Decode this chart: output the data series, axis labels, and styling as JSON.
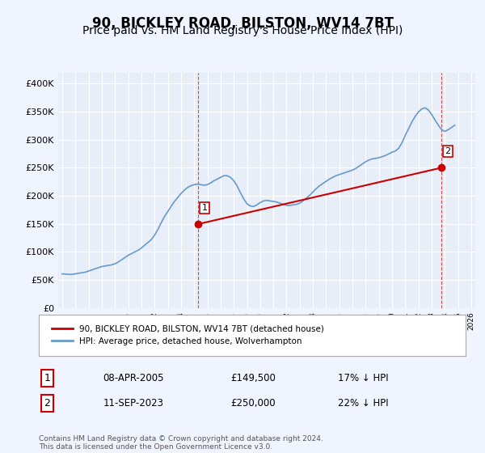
{
  "title": "90, BICKLEY ROAD, BILSTON, WV14 7BT",
  "subtitle": "Price paid vs. HM Land Registry's House Price Index (HPI)",
  "title_fontsize": 12,
  "subtitle_fontsize": 10,
  "background_color": "#f0f4ff",
  "plot_bg_color": "#e8eef8",
  "grid_color": "#ffffff",
  "line1_color": "#cc0000",
  "line2_color": "#6699cc",
  "marker1_color": "#cc0000",
  "marker2_color": "#cc0000",
  "dashed_line_color": "#cc0000",
  "xlabel": "",
  "ylabel": "",
  "ylim": [
    0,
    420000
  ],
  "ytick_labels": [
    "£0",
    "£50K",
    "£100K",
    "£150K",
    "£200K",
    "£250K",
    "£300K",
    "£350K",
    "£400K"
  ],
  "ytick_values": [
    0,
    50000,
    100000,
    150000,
    200000,
    250000,
    300000,
    350000,
    400000
  ],
  "xstart_year": 1995,
  "xend_year": 2026,
  "sale1_year": 2005.27,
  "sale1_price": 149500,
  "sale1_label": "1",
  "sale2_year": 2023.7,
  "sale2_price": 250000,
  "sale2_label": "2",
  "legend_line1": "90, BICKLEY ROAD, BILSTON, WV14 7BT (detached house)",
  "legend_line2": "HPI: Average price, detached house, Wolverhampton",
  "annotation1_date": "08-APR-2005",
  "annotation1_price": "£149,500",
  "annotation1_hpi": "17% ↓ HPI",
  "annotation2_date": "11-SEP-2023",
  "annotation2_price": "£250,000",
  "annotation2_hpi": "22% ↓ HPI",
  "footer": "Contains HM Land Registry data © Crown copyright and database right 2024.\nThis data is licensed under the Open Government Licence v3.0.",
  "hpi_data": {
    "years": [
      1995.0,
      1995.25,
      1995.5,
      1995.75,
      1996.0,
      1996.25,
      1996.5,
      1996.75,
      1997.0,
      1997.25,
      1997.5,
      1997.75,
      1998.0,
      1998.25,
      1998.5,
      1998.75,
      1999.0,
      1999.25,
      1999.5,
      1999.75,
      2000.0,
      2000.25,
      2000.5,
      2000.75,
      2001.0,
      2001.25,
      2001.5,
      2001.75,
      2002.0,
      2002.25,
      2002.5,
      2002.75,
      2003.0,
      2003.25,
      2003.5,
      2003.75,
      2004.0,
      2004.25,
      2004.5,
      2004.75,
      2005.0,
      2005.25,
      2005.5,
      2005.75,
      2006.0,
      2006.25,
      2006.5,
      2006.75,
      2007.0,
      2007.25,
      2007.5,
      2007.75,
      2008.0,
      2008.25,
      2008.5,
      2008.75,
      2009.0,
      2009.25,
      2009.5,
      2009.75,
      2010.0,
      2010.25,
      2010.5,
      2010.75,
      2011.0,
      2011.25,
      2011.5,
      2011.75,
      2012.0,
      2012.25,
      2012.5,
      2012.75,
      2013.0,
      2013.25,
      2013.5,
      2013.75,
      2014.0,
      2014.25,
      2014.5,
      2014.75,
      2015.0,
      2015.25,
      2015.5,
      2015.75,
      2016.0,
      2016.25,
      2016.5,
      2016.75,
      2017.0,
      2017.25,
      2017.5,
      2017.75,
      2018.0,
      2018.25,
      2018.5,
      2018.75,
      2019.0,
      2019.25,
      2019.5,
      2019.75,
      2020.0,
      2020.25,
      2020.5,
      2020.75,
      2021.0,
      2021.25,
      2021.5,
      2021.75,
      2022.0,
      2022.25,
      2022.5,
      2022.75,
      2023.0,
      2023.25,
      2023.5,
      2023.75,
      2024.0,
      2024.25,
      2024.5,
      2024.75
    ],
    "values": [
      61000,
      60500,
      60000,
      60000,
      61000,
      62000,
      63000,
      64000,
      66000,
      68000,
      70000,
      72000,
      74000,
      75000,
      76000,
      77000,
      79000,
      82000,
      86000,
      90000,
      94000,
      97000,
      100000,
      103000,
      107000,
      112000,
      117000,
      122000,
      130000,
      140000,
      152000,
      163000,
      172000,
      181000,
      190000,
      197000,
      204000,
      210000,
      215000,
      218000,
      220000,
      221000,
      220000,
      219000,
      220000,
      223000,
      227000,
      230000,
      233000,
      236000,
      236000,
      233000,
      227000,
      218000,
      206000,
      195000,
      186000,
      182000,
      181000,
      184000,
      188000,
      191000,
      192000,
      191000,
      190000,
      189000,
      187000,
      185000,
      183000,
      183000,
      184000,
      185000,
      187000,
      191000,
      196000,
      201000,
      207000,
      213000,
      218000,
      222000,
      226000,
      230000,
      233000,
      236000,
      238000,
      240000,
      242000,
      244000,
      246000,
      249000,
      253000,
      257000,
      261000,
      264000,
      266000,
      267000,
      268000,
      270000,
      272000,
      275000,
      278000,
      280000,
      285000,
      295000,
      308000,
      320000,
      332000,
      342000,
      350000,
      355000,
      357000,
      353000,
      345000,
      335000,
      326000,
      318000,
      315000,
      318000,
      322000,
      326000
    ]
  },
  "price_data": {
    "years": [
      2005.27,
      2023.7
    ],
    "values": [
      149500,
      250000
    ]
  }
}
